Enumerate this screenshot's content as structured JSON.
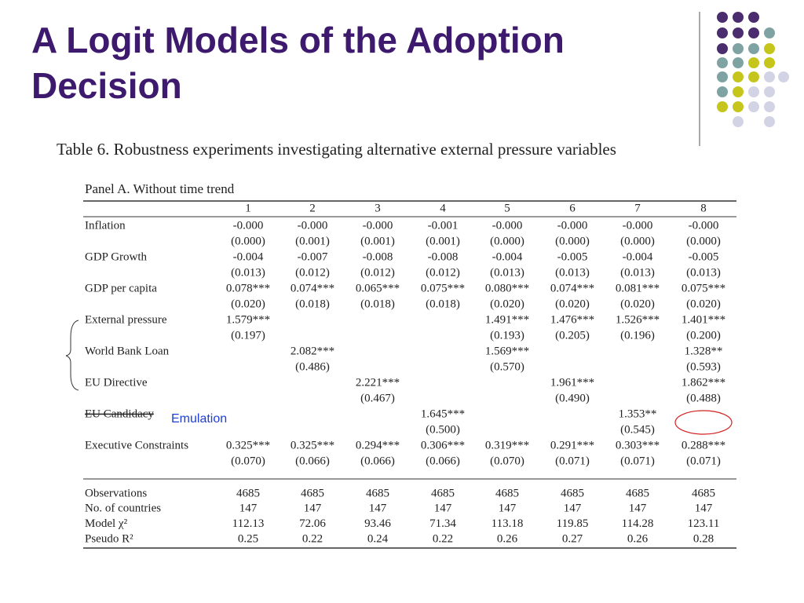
{
  "title": "A Logit Models of the Adoption Decision",
  "annotation": "Emulation",
  "table": {
    "caption": "Table 6.  Robustness experiments investigating alternative external pressure variables",
    "panel": "Panel A. Without time trend",
    "columns": [
      "1",
      "2",
      "3",
      "4",
      "5",
      "6",
      "7",
      "8"
    ],
    "rows": [
      {
        "label": "Inflation",
        "coef": [
          "-0.000",
          "-0.000",
          "-0.000",
          "-0.001",
          "-0.000",
          "-0.000",
          "-0.000",
          "-0.000"
        ],
        "se": [
          "(0.000)",
          "(0.001)",
          "(0.001)",
          "(0.001)",
          "(0.000)",
          "(0.000)",
          "(0.000)",
          "(0.000)"
        ]
      },
      {
        "label": "GDP Growth",
        "coef": [
          "-0.004",
          "-0.007",
          "-0.008",
          "-0.008",
          "-0.004",
          "-0.005",
          "-0.004",
          "-0.005"
        ],
        "se": [
          "(0.013)",
          "(0.012)",
          "(0.012)",
          "(0.012)",
          "(0.013)",
          "(0.013)",
          "(0.013)",
          "(0.013)"
        ]
      },
      {
        "label": "GDP per capita",
        "coef": [
          "0.078***",
          "0.074***",
          "0.065***",
          "0.075***",
          "0.080***",
          "0.074***",
          "0.081***",
          "0.075***"
        ],
        "se": [
          "(0.020)",
          "(0.018)",
          "(0.018)",
          "(0.018)",
          "(0.020)",
          "(0.020)",
          "(0.020)",
          "(0.020)"
        ]
      },
      {
        "label": "External pressure",
        "coef": [
          "1.579***",
          null,
          null,
          null,
          "1.491***",
          "1.476***",
          "1.526***",
          "1.401***"
        ],
        "se": [
          "(0.197)",
          null,
          null,
          null,
          "(0.193)",
          "(0.205)",
          "(0.196)",
          "(0.200)"
        ]
      },
      {
        "label": "World Bank Loan",
        "coef": [
          null,
          "2.082***",
          null,
          null,
          "1.569***",
          null,
          null,
          "1.328**"
        ],
        "se": [
          null,
          "(0.486)",
          null,
          null,
          "(0.570)",
          null,
          null,
          "(0.593)"
        ]
      },
      {
        "label": "EU Directive",
        "coef": [
          null,
          null,
          "2.221***",
          null,
          null,
          "1.961***",
          null,
          "1.862***"
        ],
        "se": [
          null,
          null,
          "(0.467)",
          null,
          null,
          "(0.490)",
          null,
          "(0.488)"
        ]
      },
      {
        "label": "EU Candidacy",
        "coef": [
          null,
          null,
          null,
          "1.645***",
          null,
          null,
          "1.353**",
          null
        ],
        "se": [
          null,
          null,
          null,
          "(0.500)",
          null,
          null,
          "(0.545)",
          null
        ]
      },
      {
        "label": "Executive Constraints",
        "coef": [
          "0.325***",
          "0.325***",
          "0.294***",
          "0.306***",
          "0.319***",
          "0.291***",
          "0.303***",
          "0.288***"
        ],
        "se": [
          "(0.070)",
          "(0.066)",
          "(0.066)",
          "(0.066)",
          "(0.070)",
          "(0.071)",
          "(0.071)",
          "(0.071)"
        ]
      }
    ],
    "stats": [
      {
        "label": "Observations",
        "values": [
          "4685",
          "4685",
          "4685",
          "4685",
          "4685",
          "4685",
          "4685",
          "4685"
        ]
      },
      {
        "label": "No. of countries",
        "values": [
          "147",
          "147",
          "147",
          "147",
          "147",
          "147",
          "147",
          "147"
        ]
      },
      {
        "label": "Model χ²",
        "values": [
          "112.13",
          "72.06",
          "93.46",
          "71.34",
          "113.18",
          "119.85",
          "114.28",
          "123.11"
        ]
      },
      {
        "label": "Pseudo R²",
        "values": [
          "0.25",
          "0.22",
          "0.24",
          "0.22",
          "0.26",
          "0.27",
          "0.26",
          "0.28"
        ]
      }
    ]
  }
}
